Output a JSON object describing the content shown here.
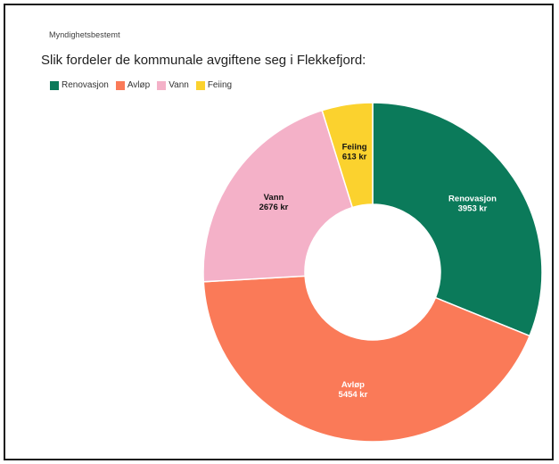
{
  "header": {
    "tagline": "Myndighetsbestemt",
    "title": "Slik fordeler de kommunale avgiftene seg i Flekkefjord:"
  },
  "chart_data": {
    "type": "pie",
    "title": "Slik fordeler de kommunale avgiftene seg i Flekkefjord:",
    "legend_position": "top-left",
    "unit": "kr",
    "slices": [
      {
        "name": "Renovasjon",
        "value": 3953,
        "label": "3953 kr",
        "color": "#0b7a5a",
        "label_color": "#ffffff"
      },
      {
        "name": "Avløp",
        "value": 5454,
        "label": "5454 kr",
        "color": "#fa7a58",
        "label_color": "#ffffff"
      },
      {
        "name": "Vann",
        "value": 2676,
        "label": "2676 kr",
        "color": "#f4b1c8",
        "label_color": "#111111"
      },
      {
        "name": "Feiing",
        "value": 613,
        "label": "613 kr",
        "color": "#fbd22e",
        "label_color": "#111111"
      }
    ]
  }
}
